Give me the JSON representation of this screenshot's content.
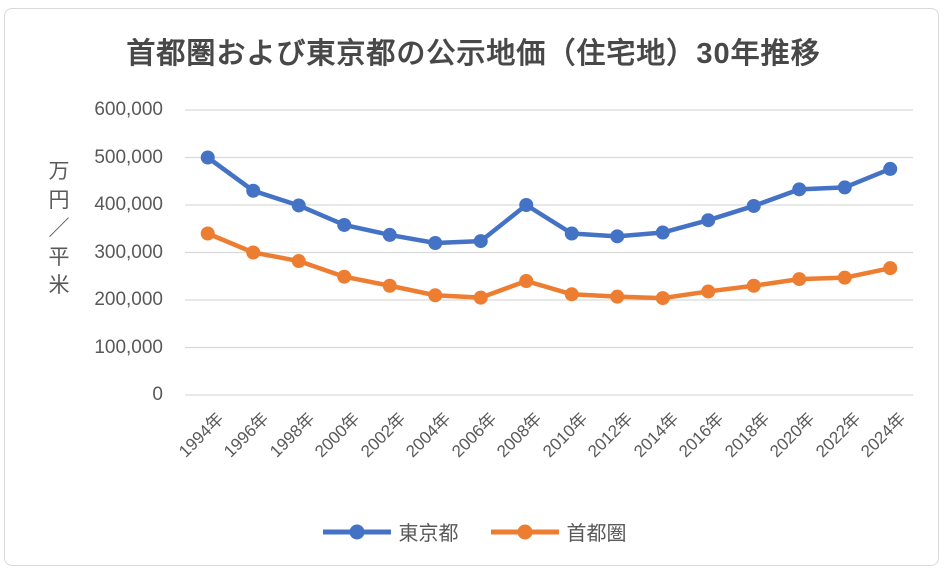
{
  "frame": {
    "background": "#ffffff",
    "border_color": "#d9d9d9"
  },
  "chart_data": {
    "type": "line",
    "title": "首都圏および東京都の公示地価（住宅地）30年推移",
    "ylabel": "万円／平米",
    "xlabel": "",
    "categories": [
      "1994年",
      "1996年",
      "1998年",
      "2000年",
      "2002年",
      "2004年",
      "2006年",
      "2008年",
      "2010年",
      "2012年",
      "2014年",
      "2016年",
      "2018年",
      "2020年",
      "2022年",
      "2024年"
    ],
    "series": [
      {
        "name": "東京都",
        "color": "#4472C4",
        "marker": "circle",
        "values": [
          500000,
          430000,
          399000,
          358000,
          337000,
          320000,
          324000,
          400000,
          340000,
          334000,
          342000,
          368000,
          398000,
          433000,
          437000,
          476000
        ]
      },
      {
        "name": "首都圏",
        "color": "#ED7D31",
        "marker": "circle",
        "values": [
          340000,
          300000,
          282000,
          249000,
          230000,
          210000,
          205000,
          240000,
          212000,
          207000,
          204000,
          218000,
          230000,
          244000,
          247000,
          267000
        ]
      }
    ],
    "ylim": [
      0,
      600000
    ],
    "ytick_step": 100000,
    "ytick_labels": [
      "0",
      "100,000",
      "200,000",
      "300,000",
      "400,000",
      "500,000",
      "600,000"
    ],
    "grid": true,
    "grid_color": "#d9d9d9",
    "tick_color": "#595959",
    "title_color": "#484848",
    "legend_position": "bottom"
  }
}
